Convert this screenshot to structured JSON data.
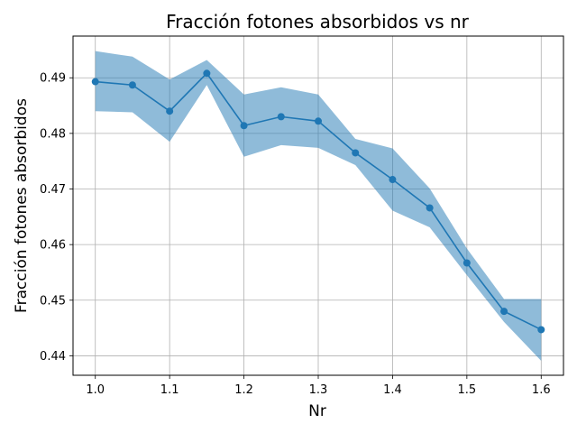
{
  "chart_data": {
    "type": "line",
    "title": "Fracción fotones absorbidos vs nr",
    "xlabel": "Nr",
    "ylabel": "Fracción fotones absorbidos",
    "xlim": [
      0.97,
      1.63
    ],
    "ylim": [
      0.4365,
      0.4975
    ],
    "xticks": [
      1.0,
      1.1,
      1.2,
      1.3,
      1.4,
      1.5,
      1.6
    ],
    "xtick_labels": [
      "1.0",
      "1.1",
      "1.2",
      "1.3",
      "1.4",
      "1.5",
      "1.6"
    ],
    "yticks": [
      0.44,
      0.45,
      0.46,
      0.47,
      0.48,
      0.49
    ],
    "ytick_labels": [
      "0.44",
      "0.45",
      "0.46",
      "0.47",
      "0.48",
      "0.49"
    ],
    "grid": true,
    "series": [
      {
        "x": [
          1.0,
          1.05,
          1.1,
          1.15,
          1.2,
          1.25,
          1.3,
          1.35,
          1.4,
          1.45,
          1.5,
          1.55,
          1.6
        ],
        "y": [
          0.4893,
          0.4887,
          0.484,
          0.4908,
          0.4814,
          0.483,
          0.4822,
          0.4765,
          0.4717,
          0.4666,
          0.4567,
          0.448,
          0.4447
        ],
        "lower": [
          0.484,
          0.4838,
          0.4785,
          0.4887,
          0.4758,
          0.4779,
          0.4774,
          0.4743,
          0.4661,
          0.4631,
          0.4545,
          0.4461,
          0.4391
        ],
        "upper": [
          0.4948,
          0.4938,
          0.4897,
          0.4932,
          0.487,
          0.4883,
          0.487,
          0.479,
          0.4773,
          0.4701,
          0.4593,
          0.4502,
          0.4502
        ],
        "color": "#1f77b4",
        "band_color": "#1f77b4"
      }
    ]
  }
}
